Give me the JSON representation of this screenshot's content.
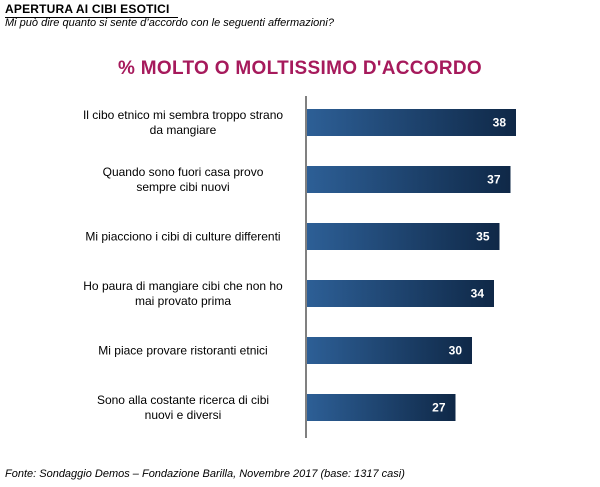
{
  "header": {
    "title": "APERTURA  AI CIBI ESOTICI",
    "subtitle": "Mi può dire quanto si sente d’accordo con le seguenti affermazioni?"
  },
  "chart_data": {
    "type": "bar",
    "orientation": "horizontal",
    "title": "% MOLTO  O  MOLTISSIMO  D'ACCORDO",
    "categories": [
      [
        "Il cibo etnico mi sembra troppo strano",
        "da mangiare"
      ],
      [
        "Quando sono fuori casa provo",
        "sempre cibi nuovi"
      ],
      [
        "Mi piacciono i cibi di culture differenti"
      ],
      [
        "Ho paura di mangiare cibi che non ho",
        "mai provato prima"
      ],
      [
        "Mi piace provare ristoranti etnici"
      ],
      [
        "Sono alla costante ricerca di cibi",
        "nuovi e diversi"
      ]
    ],
    "values": [
      38,
      37,
      35,
      34,
      30,
      27
    ],
    "xlim": [
      0,
      38
    ],
    "grid": false,
    "legend": "none",
    "colors": {
      "bar_dark": "#0f2847",
      "bar_light": "#2d5f96",
      "title": "#a61a5c"
    }
  },
  "footer": {
    "source": "Fonte: Sondaggio Demos – Fondazione Barilla, Novembre 2017 (base: 1317 casi)"
  }
}
